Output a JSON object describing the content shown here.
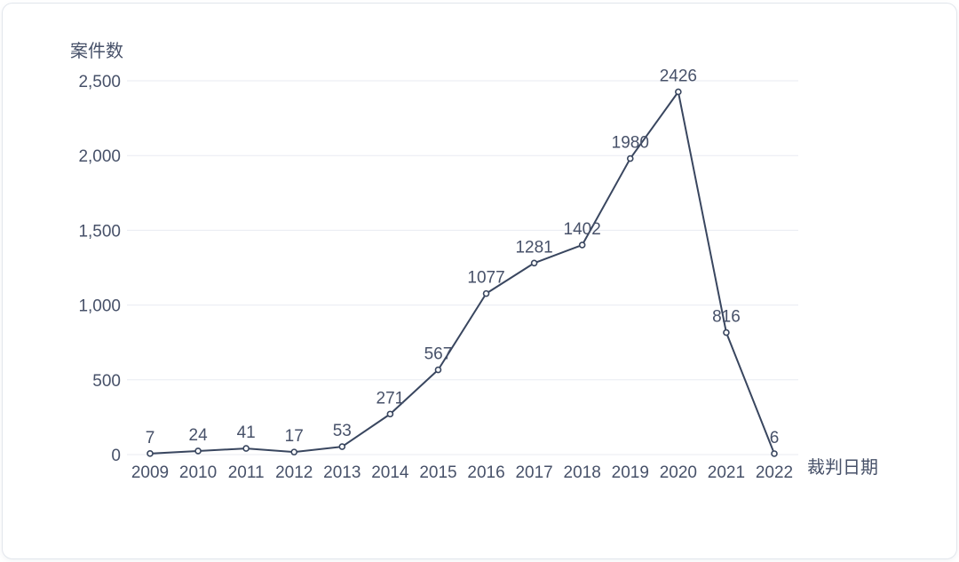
{
  "page": {
    "background_color": "#ffffff",
    "card_border_color": "#e2e6ec"
  },
  "chart_data": {
    "type": "line",
    "title": "",
    "ylabel": "案件数",
    "xlabel": "裁判日期",
    "categories": [
      "2009",
      "2010",
      "2011",
      "2012",
      "2013",
      "2014",
      "2015",
      "2016",
      "2017",
      "2018",
      "2019",
      "2020",
      "2021",
      "2022"
    ],
    "values": [
      7,
      24,
      41,
      17,
      53,
      271,
      567,
      1077,
      1281,
      1402,
      1980,
      2426,
      816,
      6
    ],
    "point_labels": [
      "7",
      "24",
      "41",
      "17",
      "53",
      "271",
      "567",
      "1077",
      "1281",
      "1402",
      "1980",
      "2426",
      "816",
      "6"
    ],
    "ylim": [
      0,
      2500
    ],
    "ytick_interval": 500,
    "ytick_labels": [
      "0",
      "500",
      "1,000",
      "1,500",
      "2,000",
      "2,500"
    ],
    "grid": "horizontal-only",
    "legend": "none",
    "show_point_labels": true,
    "marker": "open-circle",
    "line_color": "#39465f",
    "marker_fill": "#ffffff",
    "grid_color": "#e8ebf2",
    "text_color": "#475169"
  }
}
